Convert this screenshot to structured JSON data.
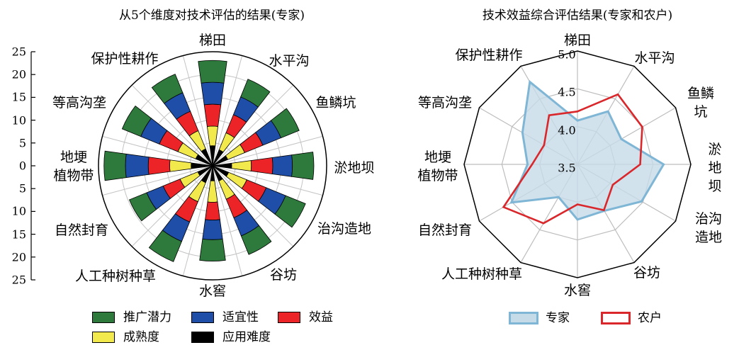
{
  "chart_data": [
    {
      "type": "bar",
      "polar": true,
      "stacked": true,
      "title": "从5个维度对技术评估的结果(专家)",
      "categories": [
        "梯田",
        "水平沟",
        "鱼鳞坑",
        "淤地坝",
        "治沟造地",
        "谷坊",
        "水窖",
        "人工种树种草",
        "自然封育",
        "地埂\n植物带",
        "等高沟垄",
        "保护性耕作"
      ],
      "series": [
        {
          "name": "应用难度",
          "color": "#000000",
          "values": [
            4.4,
            3.8,
            3.6,
            4.2,
            3.8,
            3.6,
            3.3,
            4.0,
            3.5,
            4.7,
            4.0,
            4.0
          ]
        },
        {
          "name": "成熟度",
          "color": "#f2ea4c",
          "values": [
            4.3,
            4.0,
            4.0,
            4.3,
            4.3,
            4.3,
            4.7,
            4.5,
            4.2,
            4.7,
            4.2,
            4.3
          ]
        },
        {
          "name": "效益",
          "color": "#ec2428",
          "values": [
            4.8,
            4.3,
            4.3,
            4.7,
            4.6,
            4.4,
            3.9,
            4.8,
            4.0,
            4.7,
            4.4,
            4.6
          ]
        },
        {
          "name": "适宜性",
          "color": "#1f4ea8",
          "values": [
            4.8,
            4.2,
            4.3,
            4.3,
            4.6,
            4.3,
            4.3,
            4.6,
            3.9,
            5.0,
            4.4,
            4.4
          ]
        },
        {
          "name": "推广潜力",
          "color": "#2d7a3c",
          "values": [
            4.8,
            4.2,
            4.3,
            4.7,
            4.7,
            4.4,
            4.7,
            4.8,
            4.1,
            4.7,
            4.4,
            4.4
          ]
        }
      ],
      "radial_range": [
        0,
        25
      ],
      "axis_tick_labels": [
        "25",
        "20",
        "15",
        "10",
        "5",
        "0",
        "5",
        "10",
        "15",
        "20",
        "25"
      ],
      "grid": true,
      "legend": {
        "placement": "bottom"
      }
    },
    {
      "type": "line",
      "polar": true,
      "title": "技术效益综合评估结果(专家和农户)",
      "categories": [
        "梯田",
        "水平沟",
        "鱼鳞坑",
        "淤地坝",
        "治沟造地",
        "谷坊",
        "水窖",
        "人工种树种草",
        "自然封育",
        "地埂\n植物带",
        "等高沟垄",
        "保护性耕作"
      ],
      "series": [
        {
          "name": "专家",
          "color": "#7fb6d5",
          "fill_color": "#c6dbe8",
          "filled": true,
          "values": [
            4.08,
            4.31,
            4.17,
            4.64,
            4.48,
            4.21,
            4.23,
            4.0,
            4.51,
            4.16,
            4.34,
            4.76
          ]
        },
        {
          "name": "农户",
          "color": "#d9272b",
          "filled": false,
          "values": [
            4.2,
            4.57,
            4.49,
            4.33,
            4.04,
            4.2,
            4.03,
            4.4,
            4.63,
            4.1,
            4.01,
            4.25
          ]
        }
      ],
      "radial_range": [
        3.5,
        5.0
      ],
      "axis_tick_labels": [
        "3.5",
        "4.0",
        "4.5",
        "5.0"
      ],
      "grid": true,
      "legend": {
        "placement": "bottom"
      }
    }
  ]
}
